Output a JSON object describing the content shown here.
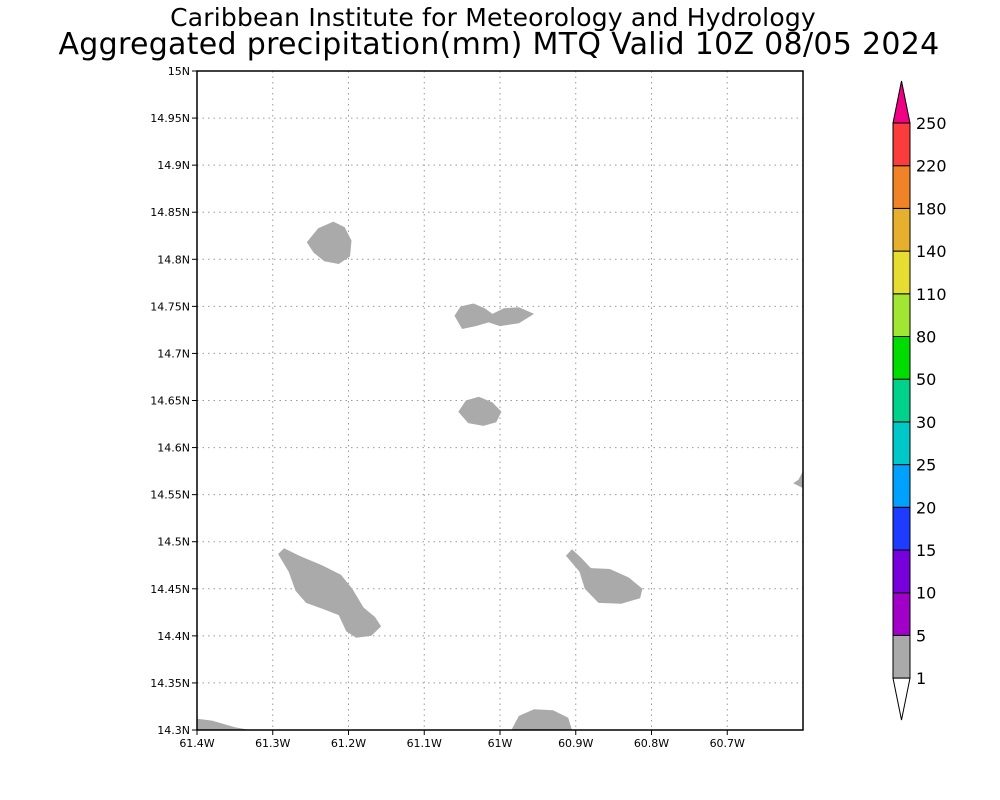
{
  "title_line1": "Caribbean Institute for Meteorology and Hydrology",
  "title_line2": "Aggregated precipitation(mm) MTQ Valid 10Z 08/05 2024",
  "axes": {
    "lon_range": [
      -61.4,
      -60.6
    ],
    "lat_range": [
      14.3,
      15.0
    ],
    "x_ticks": [
      {
        "value": -61.4,
        "label": "61.4W"
      },
      {
        "value": -61.3,
        "label": "61.3W"
      },
      {
        "value": -61.2,
        "label": "61.2W"
      },
      {
        "value": -61.1,
        "label": "61.1W"
      },
      {
        "value": -61.0,
        "label": "61W"
      },
      {
        "value": -60.9,
        "label": "60.9W"
      },
      {
        "value": -60.8,
        "label": "60.8W"
      },
      {
        "value": -60.7,
        "label": "60.7W"
      }
    ],
    "y_ticks": [
      {
        "value": 14.3,
        "label": "14.3N"
      },
      {
        "value": 14.35,
        "label": "14.35N"
      },
      {
        "value": 14.4,
        "label": "14.4N"
      },
      {
        "value": 14.45,
        "label": "14.45N"
      },
      {
        "value": 14.5,
        "label": "14.5N"
      },
      {
        "value": 14.55,
        "label": "14.55N"
      },
      {
        "value": 14.6,
        "label": "14.6N"
      },
      {
        "value": 14.65,
        "label": "14.65N"
      },
      {
        "value": 14.7,
        "label": "14.7N"
      },
      {
        "value": 14.75,
        "label": "14.75N"
      },
      {
        "value": 14.8,
        "label": "14.8N"
      },
      {
        "value": 14.85,
        "label": "14.85N"
      },
      {
        "value": 14.9,
        "label": "14.9N"
      },
      {
        "value": 14.95,
        "label": "14.95N"
      },
      {
        "value": 15.0,
        "label": "15N"
      }
    ],
    "grid": true
  },
  "rain_areas": [
    {
      "category": "1-5",
      "points": [
        [
          -61.255,
          14.818
        ],
        [
          -61.24,
          14.833
        ],
        [
          -61.22,
          14.84
        ],
        [
          -61.205,
          14.834
        ],
        [
          -61.196,
          14.82
        ],
        [
          -61.198,
          14.803
        ],
        [
          -61.213,
          14.795
        ],
        [
          -61.232,
          14.798
        ],
        [
          -61.246,
          14.807
        ]
      ]
    },
    {
      "category": "1-5",
      "points": [
        [
          -61.06,
          14.74
        ],
        [
          -61.052,
          14.75
        ],
        [
          -61.035,
          14.753
        ],
        [
          -61.02,
          14.748
        ],
        [
          -61.01,
          14.742
        ],
        [
          -60.995,
          14.748
        ],
        [
          -60.975,
          14.749
        ],
        [
          -60.955,
          14.742
        ],
        [
          -60.975,
          14.732
        ],
        [
          -61.0,
          14.729
        ],
        [
          -61.015,
          14.733
        ],
        [
          -61.032,
          14.729
        ],
        [
          -61.05,
          14.726
        ]
      ]
    },
    {
      "category": "1-5",
      "points": [
        [
          -61.055,
          14.638
        ],
        [
          -61.045,
          14.65
        ],
        [
          -61.028,
          14.654
        ],
        [
          -61.01,
          14.648
        ],
        [
          -60.998,
          14.638
        ],
        [
          -61.005,
          14.627
        ],
        [
          -61.022,
          14.623
        ],
        [
          -61.042,
          14.626
        ]
      ]
    },
    {
      "category": "1-5",
      "points": [
        [
          -60.606,
          14.566
        ],
        [
          -60.6,
          14.575
        ],
        [
          -60.6,
          14.557
        ],
        [
          -60.613,
          14.562
        ]
      ]
    },
    {
      "category": "1-5",
      "points": [
        [
          -61.293,
          14.487
        ],
        [
          -61.285,
          14.493
        ],
        [
          -61.265,
          14.485
        ],
        [
          -61.235,
          14.475
        ],
        [
          -61.21,
          14.465
        ],
        [
          -61.195,
          14.45
        ],
        [
          -61.18,
          14.43
        ],
        [
          -61.165,
          14.42
        ],
        [
          -61.157,
          14.41
        ],
        [
          -61.17,
          14.4
        ],
        [
          -61.19,
          14.398
        ],
        [
          -61.203,
          14.405
        ],
        [
          -61.213,
          14.422
        ],
        [
          -61.232,
          14.428
        ],
        [
          -61.256,
          14.435
        ],
        [
          -61.27,
          14.448
        ],
        [
          -61.279,
          14.468
        ]
      ]
    },
    {
      "category": "1-5",
      "points": [
        [
          -60.913,
          14.485
        ],
        [
          -60.905,
          14.492
        ],
        [
          -60.893,
          14.483
        ],
        [
          -60.88,
          14.472
        ],
        [
          -60.855,
          14.471
        ],
        [
          -60.83,
          14.462
        ],
        [
          -60.812,
          14.45
        ],
        [
          -60.815,
          14.44
        ],
        [
          -60.84,
          14.434
        ],
        [
          -60.87,
          14.435
        ],
        [
          -60.888,
          14.45
        ],
        [
          -60.895,
          14.468
        ]
      ]
    },
    {
      "category": "1-5",
      "points": [
        [
          -61.4,
          14.312
        ],
        [
          -61.38,
          14.31
        ],
        [
          -61.35,
          14.303
        ],
        [
          -61.33,
          14.3
        ],
        [
          -61.4,
          14.3
        ]
      ]
    },
    {
      "category": "1-5",
      "points": [
        [
          -60.985,
          14.3
        ],
        [
          -60.975,
          14.315
        ],
        [
          -60.955,
          14.322
        ],
        [
          -60.93,
          14.321
        ],
        [
          -60.91,
          14.313
        ],
        [
          -60.905,
          14.3
        ]
      ]
    }
  ],
  "colorbar": {
    "labels": [
      "1",
      "5",
      "10",
      "15",
      "20",
      "25",
      "30",
      "50",
      "80",
      "110",
      "140",
      "180",
      "220",
      "250"
    ],
    "colors": [
      "#aaaaaa",
      "#a000c8",
      "#7800dc",
      "#1e3cff",
      "#00a0ff",
      "#00c8c8",
      "#00d28c",
      "#00dc00",
      "#a0e632",
      "#e6dc32",
      "#e6af2d",
      "#f08228",
      "#fa3c3c",
      "#f00082"
    ],
    "under_color": "#ffffff"
  }
}
